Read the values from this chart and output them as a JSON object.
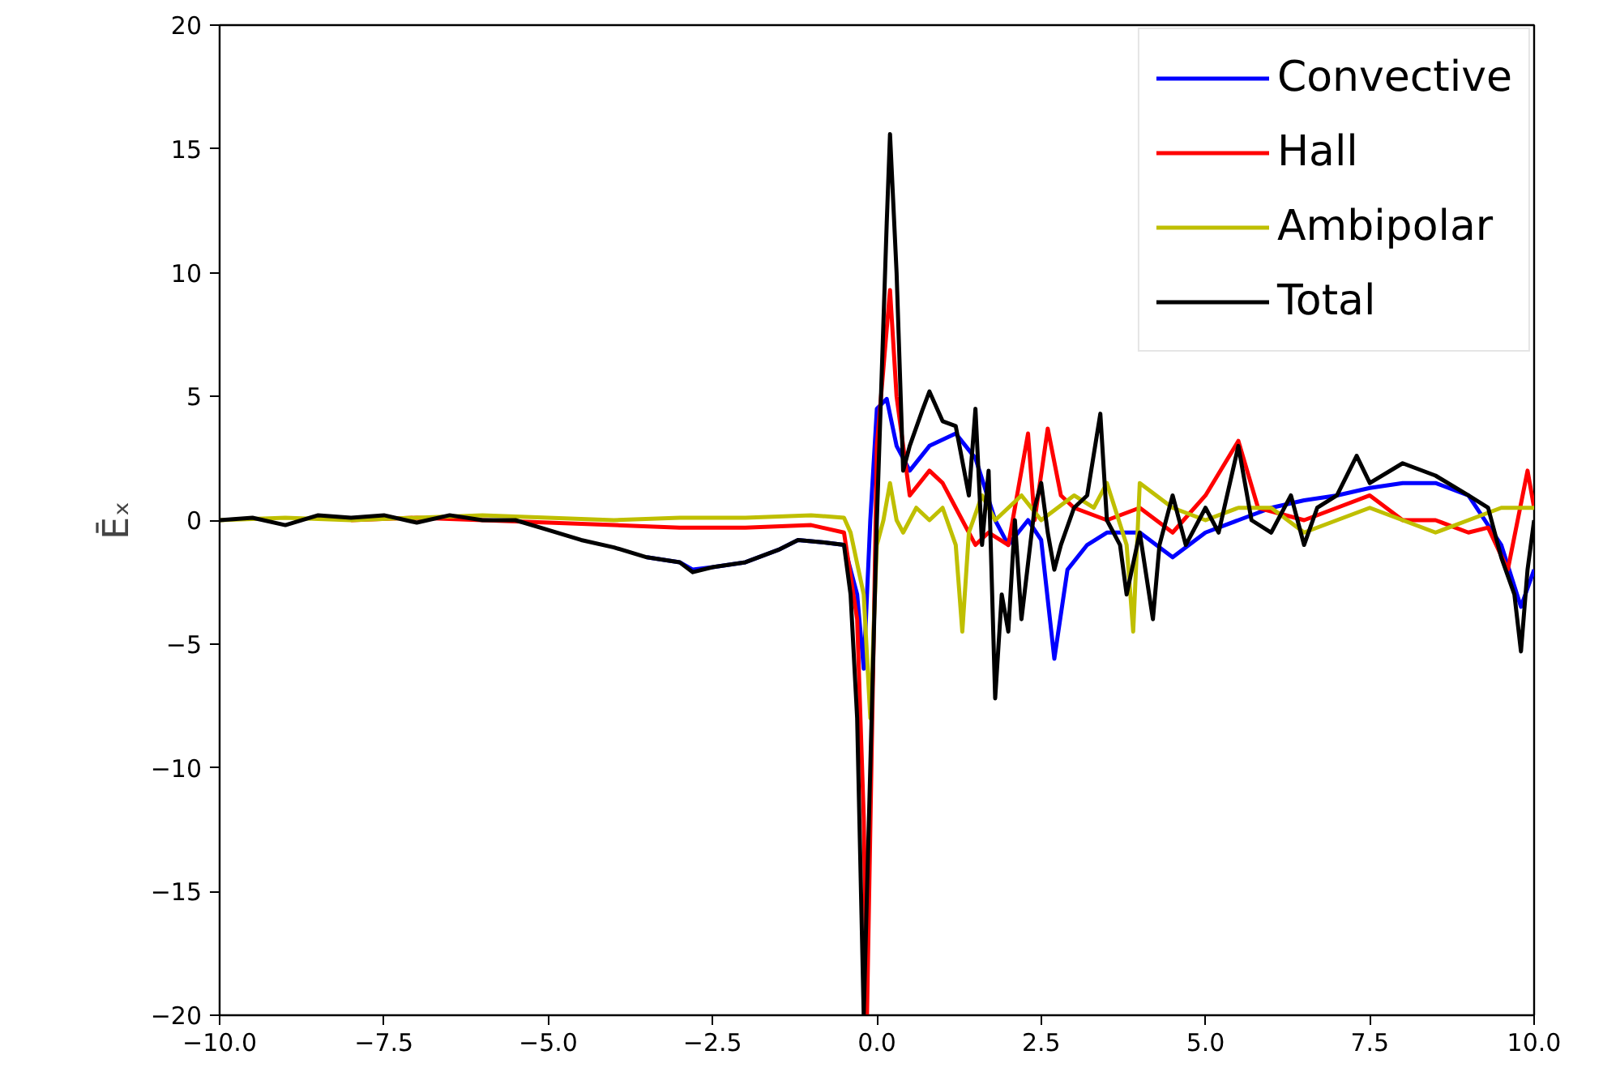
{
  "chart_data": {
    "type": "line",
    "ylabel": "Ēₓ",
    "xlim": [
      -10,
      10
    ],
    "ylim": [
      -20,
      20
    ],
    "xticks": [
      {
        "value": -10,
        "label": "−10.0"
      },
      {
        "value": -7.5,
        "label": "−7.5"
      },
      {
        "value": -5,
        "label": "−5.0"
      },
      {
        "value": -2.5,
        "label": "−2.5"
      },
      {
        "value": 0,
        "label": "0.0"
      },
      {
        "value": 2.5,
        "label": "2.5"
      },
      {
        "value": 5,
        "label": "5.0"
      },
      {
        "value": 7.5,
        "label": "7.5"
      },
      {
        "value": 10,
        "label": "10.0"
      }
    ],
    "yticks": [
      {
        "value": -20,
        "label": "−20"
      },
      {
        "value": -15,
        "label": "−15"
      },
      {
        "value": -10,
        "label": "−10"
      },
      {
        "value": -5,
        "label": "−5"
      },
      0,
      5,
      10,
      15,
      20
    ],
    "grid": false,
    "legend": "top right",
    "line_style": "solid",
    "series": [
      {
        "name": "Convective",
        "color": "#0000ff",
        "x": [
          -3.5,
          -3,
          -2.8,
          -2.5,
          -2,
          -1.5,
          -1.2,
          -0.8,
          -0.5,
          -0.3,
          -0.2,
          -0.1,
          0,
          0.15,
          0.3,
          0.5,
          0.8,
          1.2,
          1.5,
          1.8,
          2,
          2.3,
          2.5,
          2.7,
          2.9,
          3.2,
          3.5,
          4,
          4.5,
          5,
          5.5,
          6,
          6.5,
          7,
          7.5,
          8,
          8.5,
          9,
          9.5,
          9.8,
          10
        ],
        "values": [
          -1.5,
          -1.7,
          -2,
          -1.9,
          -1.7,
          -1.2,
          -0.8,
          -0.9,
          -1,
          -3,
          -6,
          0,
          4.5,
          4.9,
          3,
          2,
          3,
          3.5,
          2.5,
          0,
          -1,
          0,
          -0.8,
          -5.6,
          -2,
          -1,
          -0.5,
          -0.5,
          -1.5,
          -0.5,
          0,
          0.5,
          0.8,
          1,
          1.3,
          1.5,
          1.5,
          1,
          -1,
          -3.5,
          -2
        ]
      },
      {
        "name": "Hall",
        "color": "#ff0000",
        "x": [
          -8,
          -7,
          -6,
          -5,
          -4,
          -3,
          -2,
          -1,
          -0.5,
          -0.3,
          -0.2,
          -0.15,
          -0.05,
          0,
          0.2,
          0.3,
          0.5,
          0.8,
          1,
          1.2,
          1.5,
          1.7,
          2,
          2.3,
          2.4,
          2.6,
          2.8,
          3,
          3.5,
          4,
          4.5,
          5,
          5.5,
          5.8,
          6.5,
          7,
          7.5,
          8,
          8.5,
          9,
          9.3,
          9.6,
          9.9,
          10
        ],
        "values": [
          0,
          0.1,
          0,
          -0.1,
          -0.2,
          -0.3,
          -0.3,
          -0.2,
          -0.5,
          -4,
          -12,
          -20,
          -5,
          3,
          9.3,
          5,
          1,
          2,
          1.5,
          0.5,
          -1,
          -0.5,
          -1,
          3.5,
          0,
          3.7,
          1,
          0.5,
          0,
          0.5,
          -0.5,
          1,
          3.2,
          0.5,
          0,
          0.5,
          1,
          0,
          0,
          -0.5,
          -0.3,
          -2,
          2,
          0.5
        ]
      },
      {
        "name": "Ambipolar",
        "color": "#bfbf00",
        "x": [
          -10,
          -9,
          -8,
          -7,
          -6,
          -5,
          -4,
          -3,
          -2,
          -1,
          -0.5,
          -0.4,
          -0.2,
          -0.1,
          0,
          0.1,
          0.2,
          0.3,
          0.4,
          0.6,
          0.8,
          1,
          1.2,
          1.3,
          1.4,
          1.6,
          1.8,
          2,
          2.2,
          2.5,
          3,
          3.3,
          3.5,
          3.8,
          3.9,
          4,
          4.5,
          5,
          5.5,
          6,
          6.5,
          7,
          7.5,
          8,
          8.5,
          9,
          9.5,
          10
        ],
        "values": [
          0,
          0.1,
          0,
          0.1,
          0.2,
          0.1,
          0,
          0.1,
          0.1,
          0.2,
          0.1,
          -0.5,
          -3,
          -8,
          -1,
          0,
          1.5,
          0,
          -0.5,
          0.5,
          0,
          0.5,
          -1,
          -4.5,
          -0.5,
          1,
          0,
          0.5,
          1,
          0,
          1,
          0.5,
          1.5,
          -1,
          -4.5,
          1.5,
          0.5,
          0,
          0.5,
          0.5,
          -0.5,
          0,
          0.5,
          0,
          -0.5,
          0,
          0.5,
          0.5
        ]
      },
      {
        "name": "Total",
        "color": "#000000",
        "x": [
          -10,
          -9.5,
          -9,
          -8.5,
          -8,
          -7.5,
          -7,
          -6.5,
          -6,
          -5.5,
          -5,
          -4.5,
          -4,
          -3.5,
          -3,
          -2.8,
          -2.5,
          -2,
          -1.5,
          -1.2,
          -0.8,
          -0.5,
          -0.4,
          -0.3,
          -0.2,
          0,
          0.1,
          0.15,
          0.2,
          0.3,
          0.4,
          0.5,
          0.7,
          0.8,
          1,
          1.2,
          1.4,
          1.5,
          1.6,
          1.7,
          1.8,
          1.9,
          2,
          2.1,
          2.2,
          2.4,
          2.5,
          2.6,
          2.7,
          2.8,
          3,
          3.2,
          3.4,
          3.5,
          3.7,
          3.8,
          4,
          4.2,
          4.3,
          4.5,
          4.7,
          5,
          5.2,
          5.5,
          5.7,
          6,
          6.3,
          6.5,
          6.7,
          7,
          7.3,
          7.5,
          8,
          8.5,
          9,
          9.3,
          9.5,
          9.7,
          9.8,
          9.9,
          10
        ],
        "values": [
          0,
          0.1,
          -0.2,
          0.2,
          0.1,
          0.2,
          -0.1,
          0.2,
          0,
          0,
          -0.4,
          -0.8,
          -1.1,
          -1.5,
          -1.7,
          -2.1,
          -1.9,
          -1.7,
          -1.2,
          -0.8,
          -0.9,
          -1,
          -3,
          -8,
          -20,
          0,
          8,
          12,
          15.6,
          10,
          2,
          3,
          4.5,
          5.2,
          4,
          3.8,
          1,
          4.5,
          -1,
          2,
          -7.2,
          -3,
          -4.5,
          0,
          -4,
          0.5,
          1.5,
          -0.5,
          -2,
          -1,
          0.5,
          1,
          4.3,
          0,
          -1,
          -3,
          -0.5,
          -4,
          -1,
          1,
          -1,
          0.5,
          -0.5,
          3,
          0,
          -0.5,
          1,
          -1,
          0.5,
          1,
          2.6,
          1.5,
          2.3,
          1.8,
          1,
          0.5,
          -1.5,
          -3,
          -5.3,
          -2,
          0
        ]
      }
    ]
  }
}
